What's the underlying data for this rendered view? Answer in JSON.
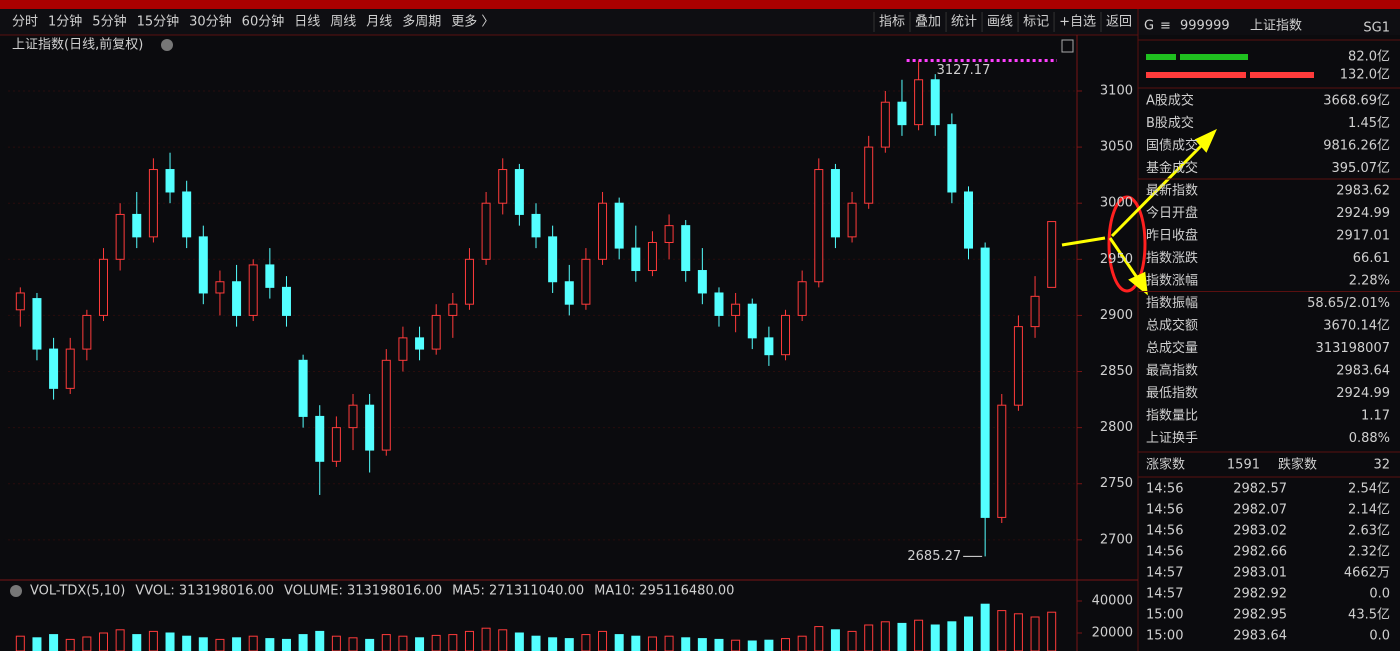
{
  "toolbar": {
    "periods": [
      "分时",
      "1分钟",
      "5分钟",
      "15分钟",
      "30分钟",
      "60分钟",
      "日线",
      "周线",
      "月线",
      "多周期",
      "更多 〉"
    ],
    "active": 6,
    "actions": [
      "指标",
      "叠加",
      "统计",
      "画线",
      "标记",
      "+自选",
      "返回"
    ]
  },
  "chart": {
    "title": "上证指数(日线,前复权)",
    "ylim": [
      2666,
      3149
    ],
    "yticks": [
      3100,
      3050,
      3000,
      2950,
      2900,
      2850,
      2800,
      2750,
      2700
    ],
    "high_index": 54,
    "low_index": 58,
    "candles": [
      [
        2905,
        2925,
        2890,
        2920
      ],
      [
        2915,
        2920,
        2860,
        2870
      ],
      [
        2870,
        2880,
        2825,
        2835
      ],
      [
        2835,
        2880,
        2830,
        2870
      ],
      [
        2870,
        2905,
        2860,
        2900
      ],
      [
        2900,
        2960,
        2895,
        2950
      ],
      [
        2950,
        3000,
        2940,
        2990
      ],
      [
        2990,
        3010,
        2960,
        2970
      ],
      [
        2970,
        3040,
        2965,
        3030
      ],
      [
        3030,
        3045,
        3000,
        3010
      ],
      [
        3010,
        3020,
        2960,
        2970
      ],
      [
        2970,
        2980,
        2910,
        2920
      ],
      [
        2920,
        2940,
        2900,
        2930
      ],
      [
        2930,
        2945,
        2890,
        2900
      ],
      [
        2900,
        2950,
        2895,
        2945
      ],
      [
        2945,
        2960,
        2915,
        2925
      ],
      [
        2925,
        2935,
        2890,
        2900
      ],
      [
        2860,
        2865,
        2800,
        2810
      ],
      [
        2810,
        2820,
        2740,
        2770
      ],
      [
        2770,
        2810,
        2765,
        2800
      ],
      [
        2800,
        2830,
        2780,
        2820
      ],
      [
        2820,
        2830,
        2760,
        2780
      ],
      [
        2780,
        2870,
        2775,
        2860
      ],
      [
        2860,
        2890,
        2850,
        2880
      ],
      [
        2880,
        2890,
        2860,
        2870
      ],
      [
        2870,
        2910,
        2865,
        2900
      ],
      [
        2900,
        2920,
        2880,
        2910
      ],
      [
        2910,
        2960,
        2905,
        2950
      ],
      [
        2950,
        3010,
        2945,
        3000
      ],
      [
        3000,
        3040,
        2990,
        3030
      ],
      [
        3030,
        3035,
        2980,
        2990
      ],
      [
        2990,
        3000,
        2960,
        2970
      ],
      [
        2970,
        2980,
        2920,
        2930
      ],
      [
        2930,
        2945,
        2900,
        2910
      ],
      [
        2910,
        2960,
        2905,
        2950
      ],
      [
        2950,
        3010,
        2945,
        3000
      ],
      [
        3000,
        3005,
        2950,
        2960
      ],
      [
        2960,
        2980,
        2930,
        2940
      ],
      [
        2940,
        2975,
        2935,
        2965
      ],
      [
        2965,
        2990,
        2950,
        2980
      ],
      [
        2980,
        2985,
        2930,
        2940
      ],
      [
        2940,
        2960,
        2910,
        2920
      ],
      [
        2920,
        2925,
        2890,
        2900
      ],
      [
        2900,
        2920,
        2885,
        2910
      ],
      [
        2910,
        2915,
        2870,
        2880
      ],
      [
        2880,
        2890,
        2855,
        2865
      ],
      [
        2865,
        2905,
        2860,
        2900
      ],
      [
        2900,
        2940,
        2895,
        2930
      ],
      [
        2930,
        3040,
        2925,
        3030
      ],
      [
        3030,
        3035,
        2960,
        2970
      ],
      [
        2970,
        3010,
        2965,
        3000
      ],
      [
        3000,
        3060,
        2995,
        3050
      ],
      [
        3050,
        3100,
        3045,
        3090
      ],
      [
        3090,
        3110,
        3060,
        3070
      ],
      [
        3070,
        3127.17,
        3065,
        3110
      ],
      [
        3110,
        3115,
        3060,
        3070
      ],
      [
        3070,
        3080,
        3000,
        3010
      ],
      [
        3010,
        3015,
        2950,
        2960
      ],
      [
        2960,
        2965,
        2685.27,
        2720
      ],
      [
        2720,
        2830,
        2715,
        2820
      ],
      [
        2820,
        2900,
        2815,
        2890
      ],
      [
        2890,
        2935,
        2880,
        2917.01
      ],
      [
        2924.99,
        2983.64,
        2924.99,
        2983.62
      ]
    ],
    "volume_header": {
      "name": "VOL-TDX(5,10)",
      "vvol": "VVOL: 313198016.00",
      "volume": "VOLUME: 313198016.00",
      "ma5": "MA5: 271311040.00",
      "ma10": "MA10: 295116480.00"
    },
    "vlim": [
      8750,
      46875
    ],
    "vticks": [
      40000,
      20000
    ],
    "volumes": [
      18000,
      17000,
      19000,
      16000,
      17500,
      20000,
      22000,
      19000,
      21000,
      20000,
      18000,
      17000,
      16000,
      17000,
      18000,
      16500,
      16000,
      19000,
      21000,
      18000,
      17000,
      16000,
      19000,
      18000,
      17000,
      18500,
      19000,
      21000,
      23000,
      22000,
      20000,
      18000,
      17000,
      16500,
      19000,
      21000,
      19000,
      18000,
      17500,
      18000,
      17000,
      16500,
      16000,
      15500,
      15000,
      15500,
      16500,
      18000,
      24000,
      22000,
      21000,
      25000,
      27000,
      26000,
      28000,
      25000,
      27000,
      30000,
      38000,
      34000,
      32000,
      30000,
      33000
    ]
  },
  "panel": {
    "g": "G",
    "menu": "≡",
    "code": "999999",
    "name": "上证指数",
    "badge": "SG1",
    "flow": [
      "82.0亿",
      "132.0亿"
    ],
    "stats": [
      [
        "A股成交",
        "3668.69亿"
      ],
      [
        "B股成交",
        "1.45亿"
      ],
      [
        "国债成交",
        "9816.26亿"
      ],
      [
        "基金成交",
        "395.07亿"
      ],
      [
        "最新指数",
        "2983.62"
      ],
      [
        "今日开盘",
        "2924.99"
      ],
      [
        "昨日收盘",
        "2917.01"
      ],
      [
        "指数涨跌",
        "66.61"
      ],
      [
        "指数涨幅",
        "2.28%"
      ],
      [
        "指数振幅",
        "58.65/2.01%"
      ],
      [
        "总成交额",
        "3670.14亿"
      ],
      [
        "总成交量",
        "313198007"
      ],
      [
        "最高指数",
        "2983.64"
      ],
      [
        "最低指数",
        "2924.99"
      ],
      [
        "指数量比",
        "1.17"
      ],
      [
        "上证换手",
        "0.88%"
      ]
    ],
    "breadth": [
      "涨家数",
      "1591",
      "跌家数",
      "32"
    ],
    "ticks": [
      [
        "14:56",
        "2982.57",
        "2.54亿"
      ],
      [
        "14:56",
        "2982.07",
        "2.14亿"
      ],
      [
        "14:56",
        "2983.02",
        "2.63亿"
      ],
      [
        "14:56",
        "2982.66",
        "2.32亿"
      ],
      [
        "14:57",
        "2983.01",
        "4662万"
      ],
      [
        "14:57",
        "2982.92",
        "0.0"
      ],
      [
        "15:00",
        "2982.95",
        "43.5亿"
      ],
      [
        "15:00",
        "2983.64",
        "0.0"
      ]
    ]
  }
}
